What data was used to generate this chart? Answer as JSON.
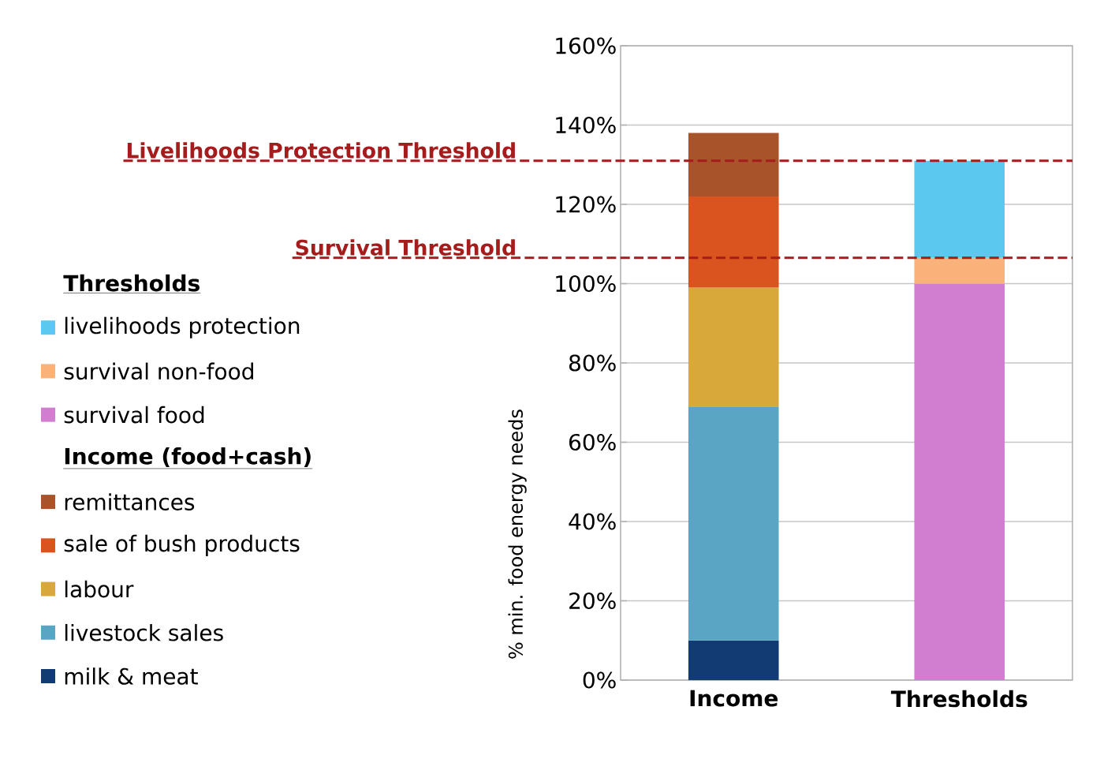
{
  "chart_data": {
    "type": "bar",
    "stacked": true,
    "ylabel": "% min. food energy needs",
    "categories": [
      "Income",
      "Thresholds"
    ],
    "series": [
      {
        "name": "milk & meat",
        "color": "#123a73",
        "values": [
          10,
          null
        ]
      },
      {
        "name": "livestock sales",
        "color": "#5aa5c4",
        "values": [
          59,
          null
        ]
      },
      {
        "name": "labour",
        "color": "#d9a83a",
        "values": [
          30,
          null
        ]
      },
      {
        "name": "sale of bush products",
        "color": "#d9541e",
        "values": [
          23,
          null
        ]
      },
      {
        "name": "remittances",
        "color": "#a9532a",
        "values": [
          16,
          null
        ]
      },
      {
        "name": "survival food",
        "color": "#d17ed0",
        "values": [
          null,
          100
        ]
      },
      {
        "name": "survival non-food",
        "color": "#f9b27a",
        "values": [
          null,
          6.5
        ]
      },
      {
        "name": "livelihoods protection",
        "color": "#5bc8ef",
        "values": [
          null,
          24.5
        ]
      }
    ],
    "ylim": [
      0,
      160
    ],
    "yticks": [
      {
        "value": 0,
        "label": "0%"
      },
      {
        "value": 20,
        "label": "20%"
      },
      {
        "value": 40,
        "label": "40%"
      },
      {
        "value": 60,
        "label": "60%"
      },
      {
        "value": 80,
        "label": "80%"
      },
      {
        "value": 100,
        "label": "100%"
      },
      {
        "value": 120,
        "label": "120%"
      },
      {
        "value": 140,
        "label": "140%"
      },
      {
        "value": 160,
        "label": "160%"
      }
    ],
    "grid": "y",
    "legend": "left",
    "legend_title": "Thresholds",
    "annotations": [
      "Income (food+cash)"
    ],
    "ref_lines": [
      {
        "axis": "y",
        "value": 131,
        "label": "Livelihoods Protection Threshold",
        "color": "#a51c1c",
        "line_style": "dashed"
      },
      {
        "axis": "y",
        "value": 106.5,
        "label": "Survival Threshold",
        "color": "#a51c1c",
        "line_style": "dashed"
      }
    ]
  }
}
